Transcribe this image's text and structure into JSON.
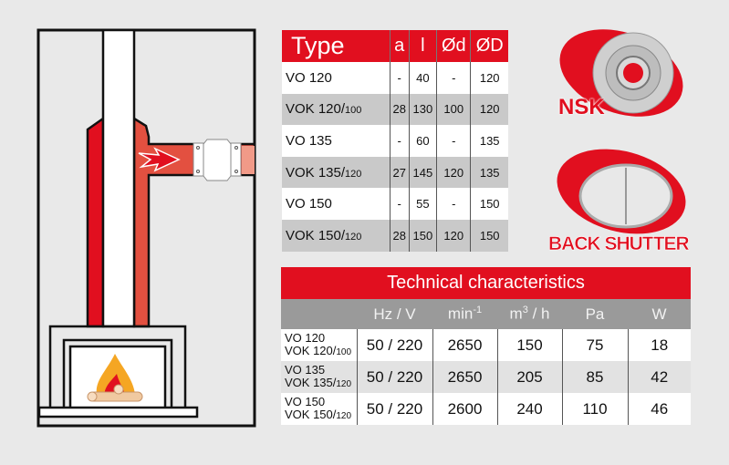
{
  "colors": {
    "accent": "#e10f1f",
    "header_gray": "#9a9a9a",
    "background": "#e9e9e9"
  },
  "diagram": {
    "icons": [
      "chimney",
      "flow-arrow-icon",
      "fan-icon",
      "fire-icon",
      "logs-icon"
    ]
  },
  "dimensions_table": {
    "headers": [
      "Type",
      "a",
      "l",
      "Ød",
      "ØD"
    ],
    "rows": [
      {
        "type": "VO 120",
        "sub": "",
        "a": "-",
        "l": "40",
        "d": "-",
        "D": "120"
      },
      {
        "type": "VOK 120/",
        "sub": "100",
        "a": "28",
        "l": "130",
        "d": "100",
        "D": "120"
      },
      {
        "type": "VO 135",
        "sub": "",
        "a": "-",
        "l": "60",
        "d": "-",
        "D": "135"
      },
      {
        "type": "VOK 135/",
        "sub": "120",
        "a": "27",
        "l": "145",
        "d": "120",
        "D": "135"
      },
      {
        "type": "VO 150",
        "sub": "",
        "a": "-",
        "l": "55",
        "d": "-",
        "D": "150"
      },
      {
        "type": "VOK 150/",
        "sub": "120",
        "a": "28",
        "l": "150",
        "d": "120",
        "D": "150"
      }
    ]
  },
  "features": {
    "bearing_label": "NSK",
    "shutter_label": "BACK SHUTTER"
  },
  "tech_table": {
    "title": "Technical characteristics",
    "headers": [
      "",
      "Hz / V",
      "min",
      "m",
      "/ h",
      "Pa",
      "W"
    ],
    "header_sup": {
      "min": "-1",
      "m": "3"
    },
    "rows": [
      {
        "line1": "VO 120",
        "line2": "VOK 120/",
        "sub": "100",
        "hzv": "50 / 220",
        "rpm": "2650",
        "flow": "150",
        "pa": "75",
        "w": "18"
      },
      {
        "line1": "VO 135",
        "line2": "VOK 135/",
        "sub": "120",
        "hzv": "50 / 220",
        "rpm": "2650",
        "flow": "205",
        "pa": "85",
        "w": "42"
      },
      {
        "line1": "VO 150",
        "line2": "VOK 150/",
        "sub": "120",
        "hzv": "50 / 220",
        "rpm": "2600",
        "flow": "240",
        "pa": "110",
        "w": "46"
      }
    ]
  }
}
